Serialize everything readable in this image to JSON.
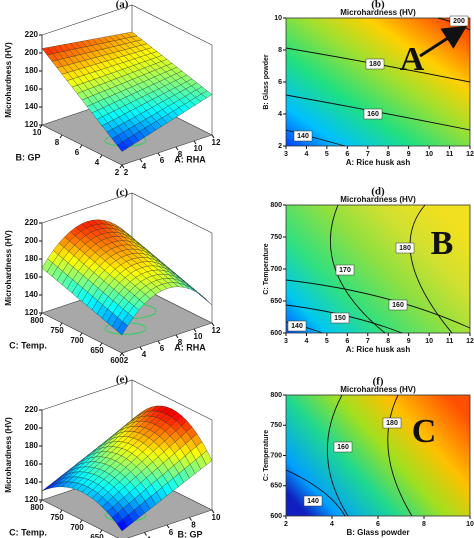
{
  "chart_data": [
    {
      "type": "surface",
      "panel_label": "(a)",
      "zlabel": "Microhardness (HV)",
      "xlabel": "A: RHA",
      "ylabel": "B: GP",
      "zlim": [
        120,
        220
      ],
      "zticks": [
        120,
        140,
        160,
        180,
        200,
        220
      ],
      "xlim": [
        2,
        12
      ],
      "xticks": [
        2,
        4,
        6,
        8,
        10,
        12
      ],
      "ylim": [
        2,
        10
      ],
      "yticks": [
        2,
        4,
        6,
        8,
        10
      ]
    },
    {
      "type": "contour",
      "panel_label": "(b)",
      "title": "Microhardness (HV)",
      "xlabel": "A: Rice husk ash",
      "ylabel": "B: Glass powder",
      "xlim": [
        3,
        12
      ],
      "xticks": [
        3,
        4,
        5,
        6,
        7,
        8,
        9,
        10,
        11,
        12
      ],
      "ylim": [
        2,
        10
      ],
      "yticks": [
        2,
        4,
        6,
        8,
        10
      ],
      "levels": [
        140,
        160,
        180,
        200
      ],
      "annotation": "A"
    },
    {
      "type": "surface",
      "panel_label": "(c)",
      "zlabel": "Microhardness (HV)",
      "xlabel": "A: RHA",
      "ylabel": "C: Temp.",
      "zlim": [
        120,
        220
      ],
      "zticks": [
        120,
        140,
        160,
        180,
        200,
        220
      ],
      "xlim": [
        2,
        12
      ],
      "xticks": [
        2,
        4,
        6,
        8,
        10,
        12
      ],
      "ylim": [
        600,
        800
      ],
      "yticks": [
        600,
        650,
        700,
        750,
        800
      ]
    },
    {
      "type": "contour",
      "panel_label": "(d)",
      "title": "Microhardness (HV)",
      "xlabel": "A: Rice husk ash",
      "ylabel": "C: Temperature",
      "xlim": [
        3,
        12
      ],
      "xticks": [
        3,
        4,
        5,
        6,
        7,
        8,
        9,
        10,
        11,
        12
      ],
      "ylim": [
        600,
        800
      ],
      "yticks": [
        600,
        650,
        700,
        750,
        800
      ],
      "levels": [
        140,
        150,
        160,
        170,
        180
      ],
      "annotation": "B"
    },
    {
      "type": "surface",
      "panel_label": "(e)",
      "zlabel": "Microhardness (HV)",
      "xlabel": "B: GP",
      "ylabel": "C: Temp.",
      "zlim": [
        120,
        220
      ],
      "zticks": [
        120,
        140,
        160,
        180,
        200,
        220
      ],
      "xlim": [
        2,
        10
      ],
      "xticks": [
        2,
        4,
        6,
        8,
        10
      ],
      "ylim": [
        600,
        800
      ],
      "yticks": [
        600,
        650,
        700,
        750,
        800
      ]
    },
    {
      "type": "contour",
      "panel_label": "(f)",
      "title": "Microhardness (HV)",
      "xlabel": "B: Glass powder",
      "ylabel": "C: Temperature",
      "xlim": [
        2,
        10
      ],
      "xticks": [
        2,
        4,
        6,
        8,
        10
      ],
      "ylim": [
        600,
        800
      ],
      "yticks": [
        600,
        650,
        700,
        750,
        800
      ],
      "levels": [
        140,
        160,
        180
      ],
      "annotation": "C"
    }
  ]
}
